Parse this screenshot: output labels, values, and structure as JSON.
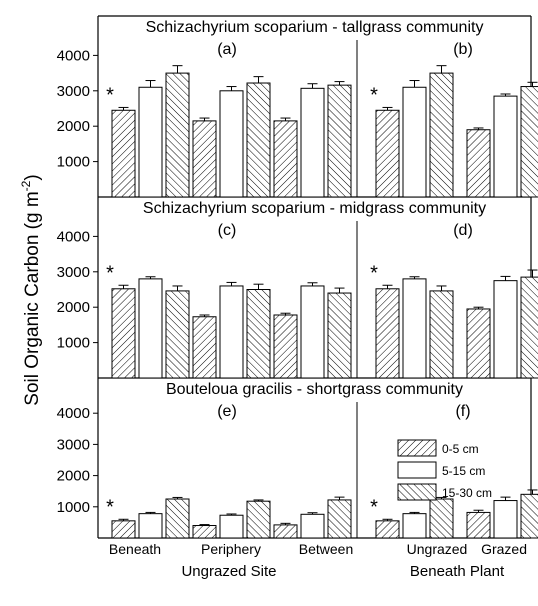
{
  "ylabel": "Soil Organic Carbon (g m",
  "ylabel_sup": "-2",
  "ylabel_close": ")",
  "yticks": [
    "1000",
    "2000",
    "3000",
    "4000"
  ],
  "group_labels": [
    "Beneath",
    "Periphery",
    "Between",
    "Ungrazed",
    "Grazed"
  ],
  "section_labels": [
    "Ungrazed Site",
    "Beneath Plant"
  ],
  "legend": [
    "0-5 cm",
    "5-15 cm",
    "15-30 cm"
  ],
  "significance_marker": "*",
  "chart_data": [
    {
      "type": "bar",
      "title": "Schizachyrium scoparium - tallgrass community",
      "series": [
        {
          "name": "0-5 cm"
        },
        {
          "name": "5-15 cm"
        },
        {
          "name": "15-30 cm"
        }
      ],
      "ylim": [
        0,
        5000
      ],
      "grid": false,
      "panels": [
        {
          "label": "(a)",
          "categories": [
            "Beneath",
            "Periphery",
            "Between"
          ],
          "values": [
            [
              2450,
              3100,
              3500
            ],
            [
              2150,
              3000,
              3220
            ],
            [
              2150,
              3070,
              3160
            ]
          ],
          "errors": [
            [
              80,
              190,
              210
            ],
            [
              80,
              120,
              180
            ],
            [
              80,
              130,
              100
            ]
          ],
          "stars": [
            [
              0,
              0
            ]
          ]
        },
        {
          "label": "(b)",
          "categories": [
            "Ungrazed",
            "Grazed"
          ],
          "values": [
            [
              2450,
              3100,
              3500
            ],
            [
              1900,
              2850,
              3120
            ]
          ],
          "errors": [
            [
              80,
              190,
              210
            ],
            [
              50,
              60,
              120
            ]
          ],
          "stars": [
            [
              0,
              0
            ]
          ]
        }
      ]
    },
    {
      "type": "bar",
      "title": "Schizachyrium scoparium - midgrass community",
      "series": [
        {
          "name": "0-5 cm"
        },
        {
          "name": "5-15 cm"
        },
        {
          "name": "15-30 cm"
        }
      ],
      "ylim": [
        0,
        5000
      ],
      "grid": false,
      "panels": [
        {
          "label": "(c)",
          "categories": [
            "Beneath",
            "Periphery",
            "Between"
          ],
          "values": [
            [
              2520,
              2800,
              2460
            ],
            [
              1730,
              2600,
              2500
            ],
            [
              1780,
              2600,
              2400
            ]
          ],
          "errors": [
            [
              100,
              60,
              140
            ],
            [
              50,
              100,
              150
            ],
            [
              50,
              90,
              140
            ]
          ],
          "stars": [
            [
              0,
              0
            ]
          ]
        },
        {
          "label": "(d)",
          "categories": [
            "Ungrazed",
            "Grazed"
          ],
          "values": [
            [
              2520,
              2800,
              2460
            ],
            [
              1950,
              2750,
              2850
            ]
          ],
          "errors": [
            [
              100,
              60,
              140
            ],
            [
              50,
              120,
              200
            ]
          ],
          "stars": [
            [
              0,
              0
            ]
          ]
        }
      ]
    },
    {
      "type": "bar",
      "title": "Bouteloua gracilis - shortgrass community",
      "series": [
        {
          "name": "0-5 cm"
        },
        {
          "name": "5-15 cm"
        },
        {
          "name": "15-30 cm"
        }
      ],
      "ylim": [
        0,
        5000
      ],
      "grid": false,
      "panels": [
        {
          "label": "(e)",
          "categories": [
            "Beneath",
            "Periphery",
            "Between"
          ],
          "values": [
            [
              550,
              780,
              1250
            ],
            [
              400,
              730,
              1180
            ],
            [
              420,
              760,
              1220
            ]
          ],
          "errors": [
            [
              50,
              40,
              50
            ],
            [
              30,
              40,
              40
            ],
            [
              50,
              50,
              90
            ]
          ],
          "stars": [
            [
              0,
              0
            ]
          ]
        },
        {
          "label": "(f)",
          "categories": [
            "Ungrazed",
            "Grazed"
          ],
          "values": [
            [
              550,
              780,
              1250
            ],
            [
              820,
              1200,
              1400
            ]
          ],
          "errors": [
            [
              50,
              40,
              50
            ],
            [
              70,
              110,
              140
            ]
          ],
          "stars": [
            [
              0,
              0
            ],
            [
              0,
              1
            ]
          ]
        }
      ]
    }
  ]
}
